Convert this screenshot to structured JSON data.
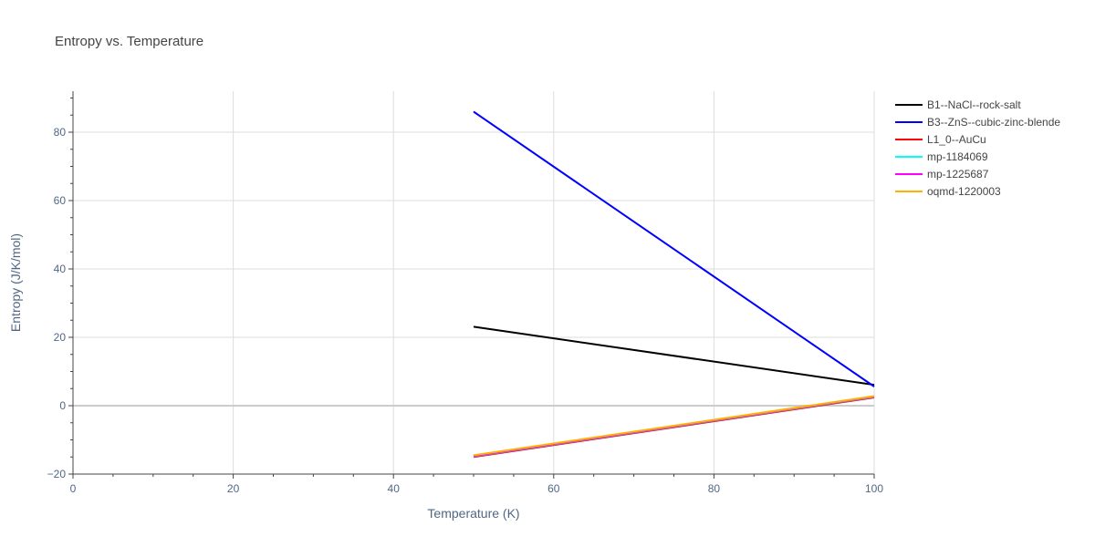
{
  "chart_data": {
    "type": "line",
    "title": "Entropy vs. Temperature",
    "xlabel": "Temperature (K)",
    "ylabel": "Entropy (J/K/mol)",
    "xlim": [
      0,
      100
    ],
    "ylim": [
      -20,
      92
    ],
    "x_ticks": [
      0,
      20,
      40,
      60,
      80,
      100
    ],
    "y_ticks": [
      -20,
      0,
      20,
      40,
      60,
      80
    ],
    "x_tick_labels": [
      "0",
      "20",
      "40",
      "60",
      "80",
      "100"
    ],
    "y_tick_labels": [
      "−20",
      "0",
      "20",
      "40",
      "60",
      "80"
    ],
    "x_minor_step": 5,
    "y_minor_step": 5,
    "grid": true,
    "legend_position": "right",
    "series": [
      {
        "name": "B1--NaCl--rock-salt",
        "color": "#000000",
        "x": [
          50,
          100
        ],
        "y": [
          23.1,
          6.1
        ]
      },
      {
        "name": "B3--ZnS--cubic-zinc-blende",
        "color": "#0000ff",
        "x": [
          50,
          100
        ],
        "y": [
          86.0,
          5.6
        ]
      },
      {
        "name": "L1_0--AuCu",
        "color": "#ff0000",
        "x": [
          50,
          100
        ],
        "y": [
          -15.0,
          2.4
        ]
      },
      {
        "name": "mp-1184069",
        "color": "#00ffff",
        "x": [
          50,
          100
        ],
        "y": [
          -14.8,
          2.6
        ]
      },
      {
        "name": "mp-1225687",
        "color": "#ff00ff",
        "x": [
          50,
          100
        ],
        "y": [
          -14.7,
          2.7
        ]
      },
      {
        "name": "oqmd-1220003",
        "color": "#ffb000",
        "x": [
          50,
          100
        ],
        "y": [
          -14.5,
          2.8
        ]
      }
    ]
  }
}
